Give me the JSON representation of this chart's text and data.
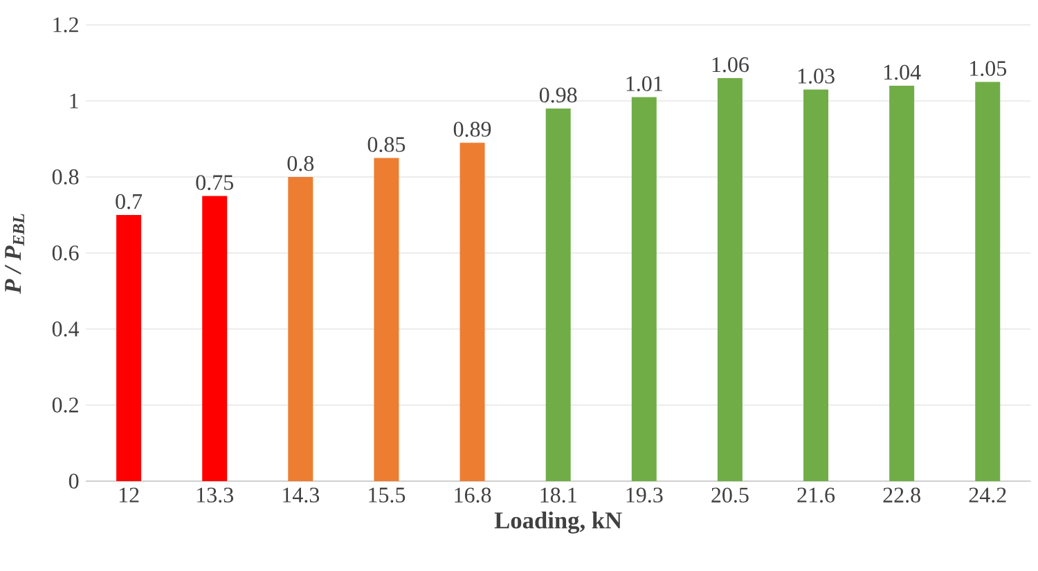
{
  "chart_data": {
    "type": "bar",
    "xlabel": "Loading, kN",
    "ylabel": "P / P$_{EBL}$",
    "categories": [
      "12",
      "13.3",
      "14.3",
      "15.5",
      "16.8",
      "18.1",
      "19.3",
      "20.5",
      "21.6",
      "22.8",
      "24.2"
    ],
    "values": [
      0.7,
      0.75,
      0.8,
      0.85,
      0.89,
      0.98,
      1.01,
      1.06,
      1.03,
      1.04,
      1.05
    ],
    "colors": [
      "#ff0000",
      "#ff0000",
      "#ed7d31",
      "#ed7d31",
      "#ed7d31",
      "#70ad47",
      "#70ad47",
      "#70ad47",
      "#70ad47",
      "#70ad47",
      "#70ad47"
    ],
    "ylim": [
      0,
      1.2
    ],
    "yticks": [
      0,
      0.2,
      0.4,
      0.6,
      0.8,
      1,
      1.2
    ],
    "grid": "y",
    "data_labels": true
  }
}
